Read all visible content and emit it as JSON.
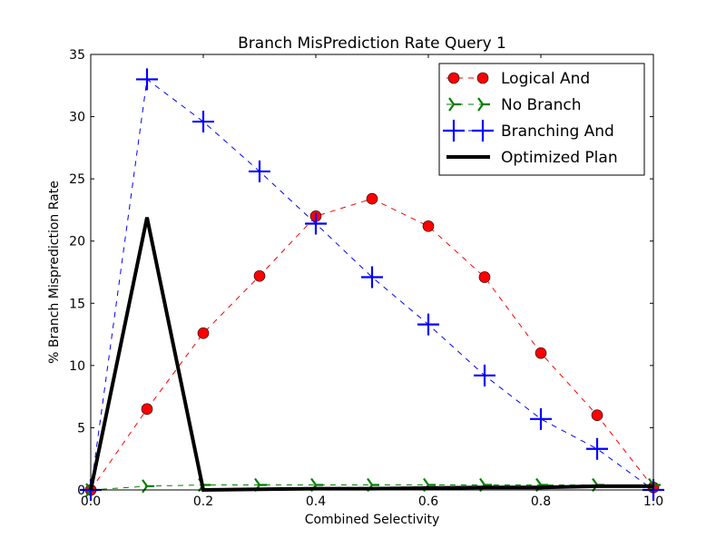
{
  "chart_data": {
    "type": "line",
    "title": "Branch MisPrediction Rate Query 1",
    "xlabel": "Combined Selectivity",
    "ylabel": "% Branch Misprediction Rate",
    "xlim": [
      0.0,
      1.0
    ],
    "ylim": [
      0,
      35
    ],
    "xticks": [
      "0.0",
      "0.2",
      "0.4",
      "0.6",
      "0.8",
      "1.0"
    ],
    "yticks": [
      "0",
      "5",
      "10",
      "15",
      "20",
      "25",
      "30",
      "35"
    ],
    "grid": false,
    "legend_position": "top-right",
    "series": [
      {
        "name": "Logical And",
        "color": "#ff0000",
        "line": "dashed",
        "marker": "circle",
        "x": [
          0.0,
          0.1,
          0.2,
          0.3,
          0.4,
          0.5,
          0.6,
          0.7,
          0.8,
          0.9,
          1.0
        ],
        "y": [
          0.0,
          6.5,
          12.6,
          17.2,
          22.0,
          23.4,
          21.2,
          17.1,
          11.0,
          6.0,
          0.2
        ]
      },
      {
        "name": "No Branch",
        "color": "#008000",
        "line": "dashed",
        "marker": "tri-right",
        "x": [
          0.0,
          0.1,
          0.2,
          0.3,
          0.4,
          0.5,
          0.6,
          0.7,
          0.8,
          0.9,
          1.0
        ],
        "y": [
          0.0,
          0.3,
          0.4,
          0.4,
          0.4,
          0.4,
          0.4,
          0.4,
          0.4,
          0.4,
          0.4
        ]
      },
      {
        "name": "Branching And",
        "color": "#0000ff",
        "line": "dashed",
        "marker": "plus",
        "x": [
          0.0,
          0.1,
          0.2,
          0.3,
          0.4,
          0.5,
          0.6,
          0.7,
          0.8,
          0.9,
          1.0
        ],
        "y": [
          0.0,
          33.0,
          29.6,
          25.6,
          21.4,
          17.1,
          13.3,
          9.2,
          5.7,
          3.3,
          0.0
        ]
      },
      {
        "name": "Optimized Plan",
        "color": "#000000",
        "line": "solid",
        "marker": "none",
        "x": [
          0.0,
          0.1,
          0.2,
          0.3,
          0.4,
          0.5,
          0.6,
          0.7,
          0.8,
          0.9,
          1.0
        ],
        "y": [
          0.0,
          21.9,
          0.0,
          0.05,
          0.1,
          0.1,
          0.15,
          0.2,
          0.2,
          0.3,
          0.3
        ]
      }
    ]
  }
}
